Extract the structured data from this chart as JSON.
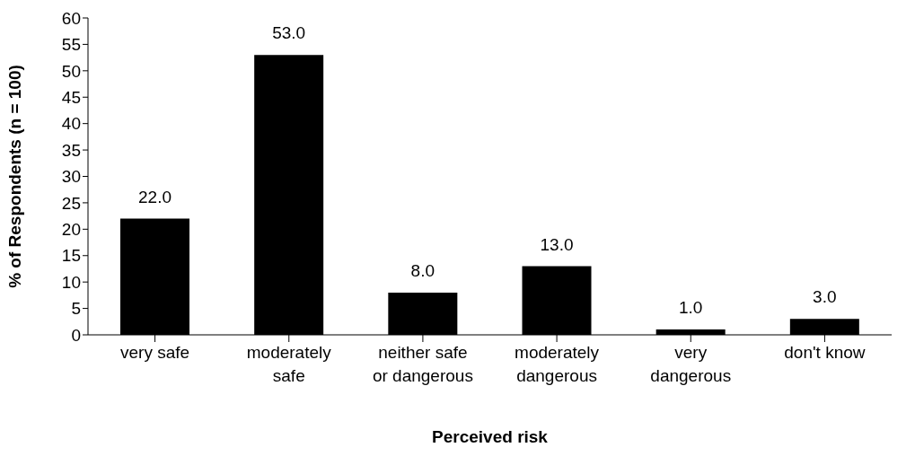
{
  "chart_data": {
    "type": "bar",
    "xlabel": "Perceived risk",
    "ylabel": "% of Respondents (n = 100)",
    "categories": [
      "very safe",
      "moderately safe",
      "neither safe or dangerous",
      "moderately dangerous",
      "very dangerous",
      "don't know"
    ],
    "values": [
      22,
      53,
      8,
      13,
      1,
      3
    ],
    "value_labels": [
      "22.0",
      "53.0",
      "8.0",
      "13.0",
      "1.0",
      "3.0"
    ],
    "color": "#000000",
    "ylim": [
      0,
      60
    ],
    "yticks": [
      0,
      5,
      10,
      15,
      20,
      25,
      30,
      35,
      40,
      45,
      50,
      55,
      60
    ],
    "grid": false,
    "legend": false
  }
}
